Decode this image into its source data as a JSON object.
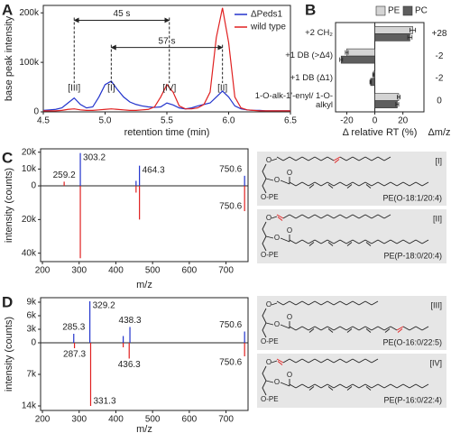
{
  "chart_data": [
    {
      "type": "line",
      "panel": "A",
      "x": [
        4.5,
        4.55,
        4.6,
        4.65,
        4.7,
        4.75,
        4.8,
        4.85,
        4.9,
        4.95,
        5.0,
        5.05,
        5.1,
        5.15,
        5.2,
        5.25,
        5.3,
        5.35,
        5.4,
        5.45,
        5.5,
        5.55,
        5.6,
        5.65,
        5.7,
        5.75,
        5.8,
        5.85,
        5.9,
        5.95,
        6.0,
        6.05,
        6.1,
        6.15,
        6.2,
        6.25,
        6.3,
        6.35,
        6.4,
        6.45,
        6.5
      ],
      "series": [
        {
          "name": "ΔPeds1",
          "color": "#2233cc",
          "values": [
            3000,
            4000,
            5000,
            8000,
            18000,
            28000,
            15000,
            8000,
            10000,
            30000,
            55000,
            62000,
            45000,
            30000,
            20000,
            15000,
            12000,
            10000,
            9000,
            10000,
            18000,
            14000,
            8000,
            6000,
            8000,
            12000,
            15000,
            18000,
            30000,
            42000,
            30000,
            12000,
            6000,
            4000,
            3000,
            3000,
            2000,
            2000,
            2000,
            2000,
            2000
          ]
        },
        {
          "name": "wild type",
          "color": "#e02020",
          "values": [
            2000,
            2000,
            2000,
            3000,
            5000,
            6000,
            4000,
            3000,
            3000,
            4000,
            5000,
            6000,
            5000,
            4000,
            3000,
            3000,
            4000,
            5000,
            10000,
            30000,
            55000,
            40000,
            12000,
            6000,
            6000,
            8000,
            15000,
            40000,
            150000,
            210000,
            140000,
            30000,
            8000,
            4000,
            3000,
            2000,
            2000,
            2000,
            2000,
            2000,
            2000
          ]
        }
      ],
      "xlim": [
        4.5,
        6.5
      ],
      "ylim": [
        0,
        215000
      ],
      "xticks": [
        4.5,
        {
          "value": 5,
          "label": "5.0"
        },
        5.5,
        {
          "value": 6,
          "label": "6.0"
        },
        6.5
      ],
      "yticks": [
        0,
        {
          "value": 100000,
          "label": "100k"
        },
        {
          "value": 200000,
          "label": "200k"
        }
      ],
      "xlabel": "retention time (min)",
      "ylabel": "base peak intensity",
      "legend": "upper right",
      "markers": [
        {
          "label": "[III]",
          "x": 4.75
        },
        {
          "label": "[I]",
          "x": 5.05
        },
        {
          "label": "[IV]",
          "x": 5.52
        },
        {
          "label": "[II]",
          "x": 5.95
        }
      ],
      "spans": [
        {
          "label": "45 s",
          "from": 4.75,
          "to": 5.52,
          "y": 185000
        },
        {
          "label": "57 s",
          "from": 5.05,
          "to": 5.95,
          "y": 130000
        }
      ]
    },
    {
      "type": "bar",
      "panel": "B",
      "categories": [
        "+2 CH₂",
        "+1 DB (>Δ4)",
        "+1 DB (Δ1)",
        "1-O-alk-1'-enyl/ 1-O-alkyl"
      ],
      "series": [
        {
          "name": "PE",
          "color": "#d4d4d4",
          "values": [
            27,
            -20,
            -1,
            17
          ],
          "errors": [
            2,
            1,
            0.5,
            1
          ]
        },
        {
          "name": "PC",
          "color": "#5e5e5e",
          "values": [
            25,
            -24,
            -3,
            16
          ],
          "errors": [
            1.5,
            1,
            0.5,
            1
          ]
        }
      ],
      "xlim": [
        -28,
        35
      ],
      "xticks": [
        -20,
        0,
        20
      ],
      "xlabel": "Δ relative RT (%)",
      "legend": "top",
      "right_title": "Δm/z",
      "right_labels": [
        "+28",
        "-2",
        "-2",
        "0"
      ]
    },
    {
      "type": "stem",
      "panel": "C",
      "series": [
        {
          "color": "#2233cc",
          "x": [
            303.2,
            455,
            464.3,
            750.6
          ],
          "values": [
            19500,
            3000,
            12000,
            6000
          ],
          "labels": [
            "303.2",
            null,
            "464.3",
            "750.6"
          ]
        },
        {
          "color": "#e02020",
          "x": [
            259.2,
            303.2,
            455,
            464.3,
            750.6
          ],
          "values": [
            2500,
            -43000,
            -4000,
            -20000,
            -15000
          ],
          "labels": [
            "259.2",
            null,
            null,
            null,
            "750.6"
          ]
        }
      ],
      "xlim": [
        195,
        760
      ],
      "ylim": [
        -45000,
        22000
      ],
      "xticks": [
        200,
        300,
        400,
        500,
        600,
        700
      ],
      "yticks": [
        {
          "value": 20000,
          "label": "20k"
        },
        {
          "value": 10000,
          "label": "10k"
        },
        0,
        {
          "value": -20000,
          "label": "20k"
        },
        {
          "value": -40000,
          "label": "40k"
        }
      ],
      "xlabel": "m/z",
      "ylabel": "intensity (counts)"
    },
    {
      "type": "stem",
      "panel": "D",
      "series": [
        {
          "color": "#2233cc",
          "x": [
            285.3,
            329.2,
            420,
            438.3,
            750.6
          ],
          "values": [
            2000,
            9200,
            1500,
            3500,
            2500
          ],
          "labels": [
            "285.3",
            "329.2",
            null,
            "438.3",
            "750.6"
          ]
        },
        {
          "color": "#e02020",
          "x": [
            287.3,
            331.3,
            420,
            436.3,
            750.6
          ],
          "values": [
            -1200,
            -14000,
            -1000,
            -3500,
            -3000
          ],
          "labels": [
            "287.3",
            "331.3",
            null,
            "436.3",
            "750.6"
          ]
        }
      ],
      "xlim": [
        195,
        760
      ],
      "ylim": [
        -15000,
        10000
      ],
      "xticks": [
        200,
        300,
        400,
        500,
        600,
        700
      ],
      "yticks": [
        {
          "value": 9000,
          "label": "9k"
        },
        {
          "value": 6000,
          "label": "6k"
        },
        {
          "value": 3000,
          "label": "3k"
        },
        0,
        {
          "value": -7000,
          "label": "7k"
        },
        {
          "value": -14000,
          "label": "14k"
        }
      ],
      "xlabel": "m/z",
      "ylabel": "intensity (counts)"
    }
  ],
  "structures": [
    {
      "label": "[I]",
      "name": "PE(O-18:1/20:4)",
      "atoms": [
        "O",
        "O",
        "O",
        "O-PE"
      ]
    },
    {
      "label": "[II]",
      "name": "PE(P-18:0/20:4)",
      "atoms": [
        "O",
        "O",
        "O",
        "O-PE"
      ]
    },
    {
      "label": "[III]",
      "name": "PE(O-16:0/22:5)",
      "atoms": [
        "O",
        "O",
        "O",
        "O-PE"
      ]
    },
    {
      "label": "[IV]",
      "name": "PE(P-16:0/22:4)",
      "atoms": [
        "O",
        "O",
        "O",
        "O-PE"
      ]
    }
  ]
}
